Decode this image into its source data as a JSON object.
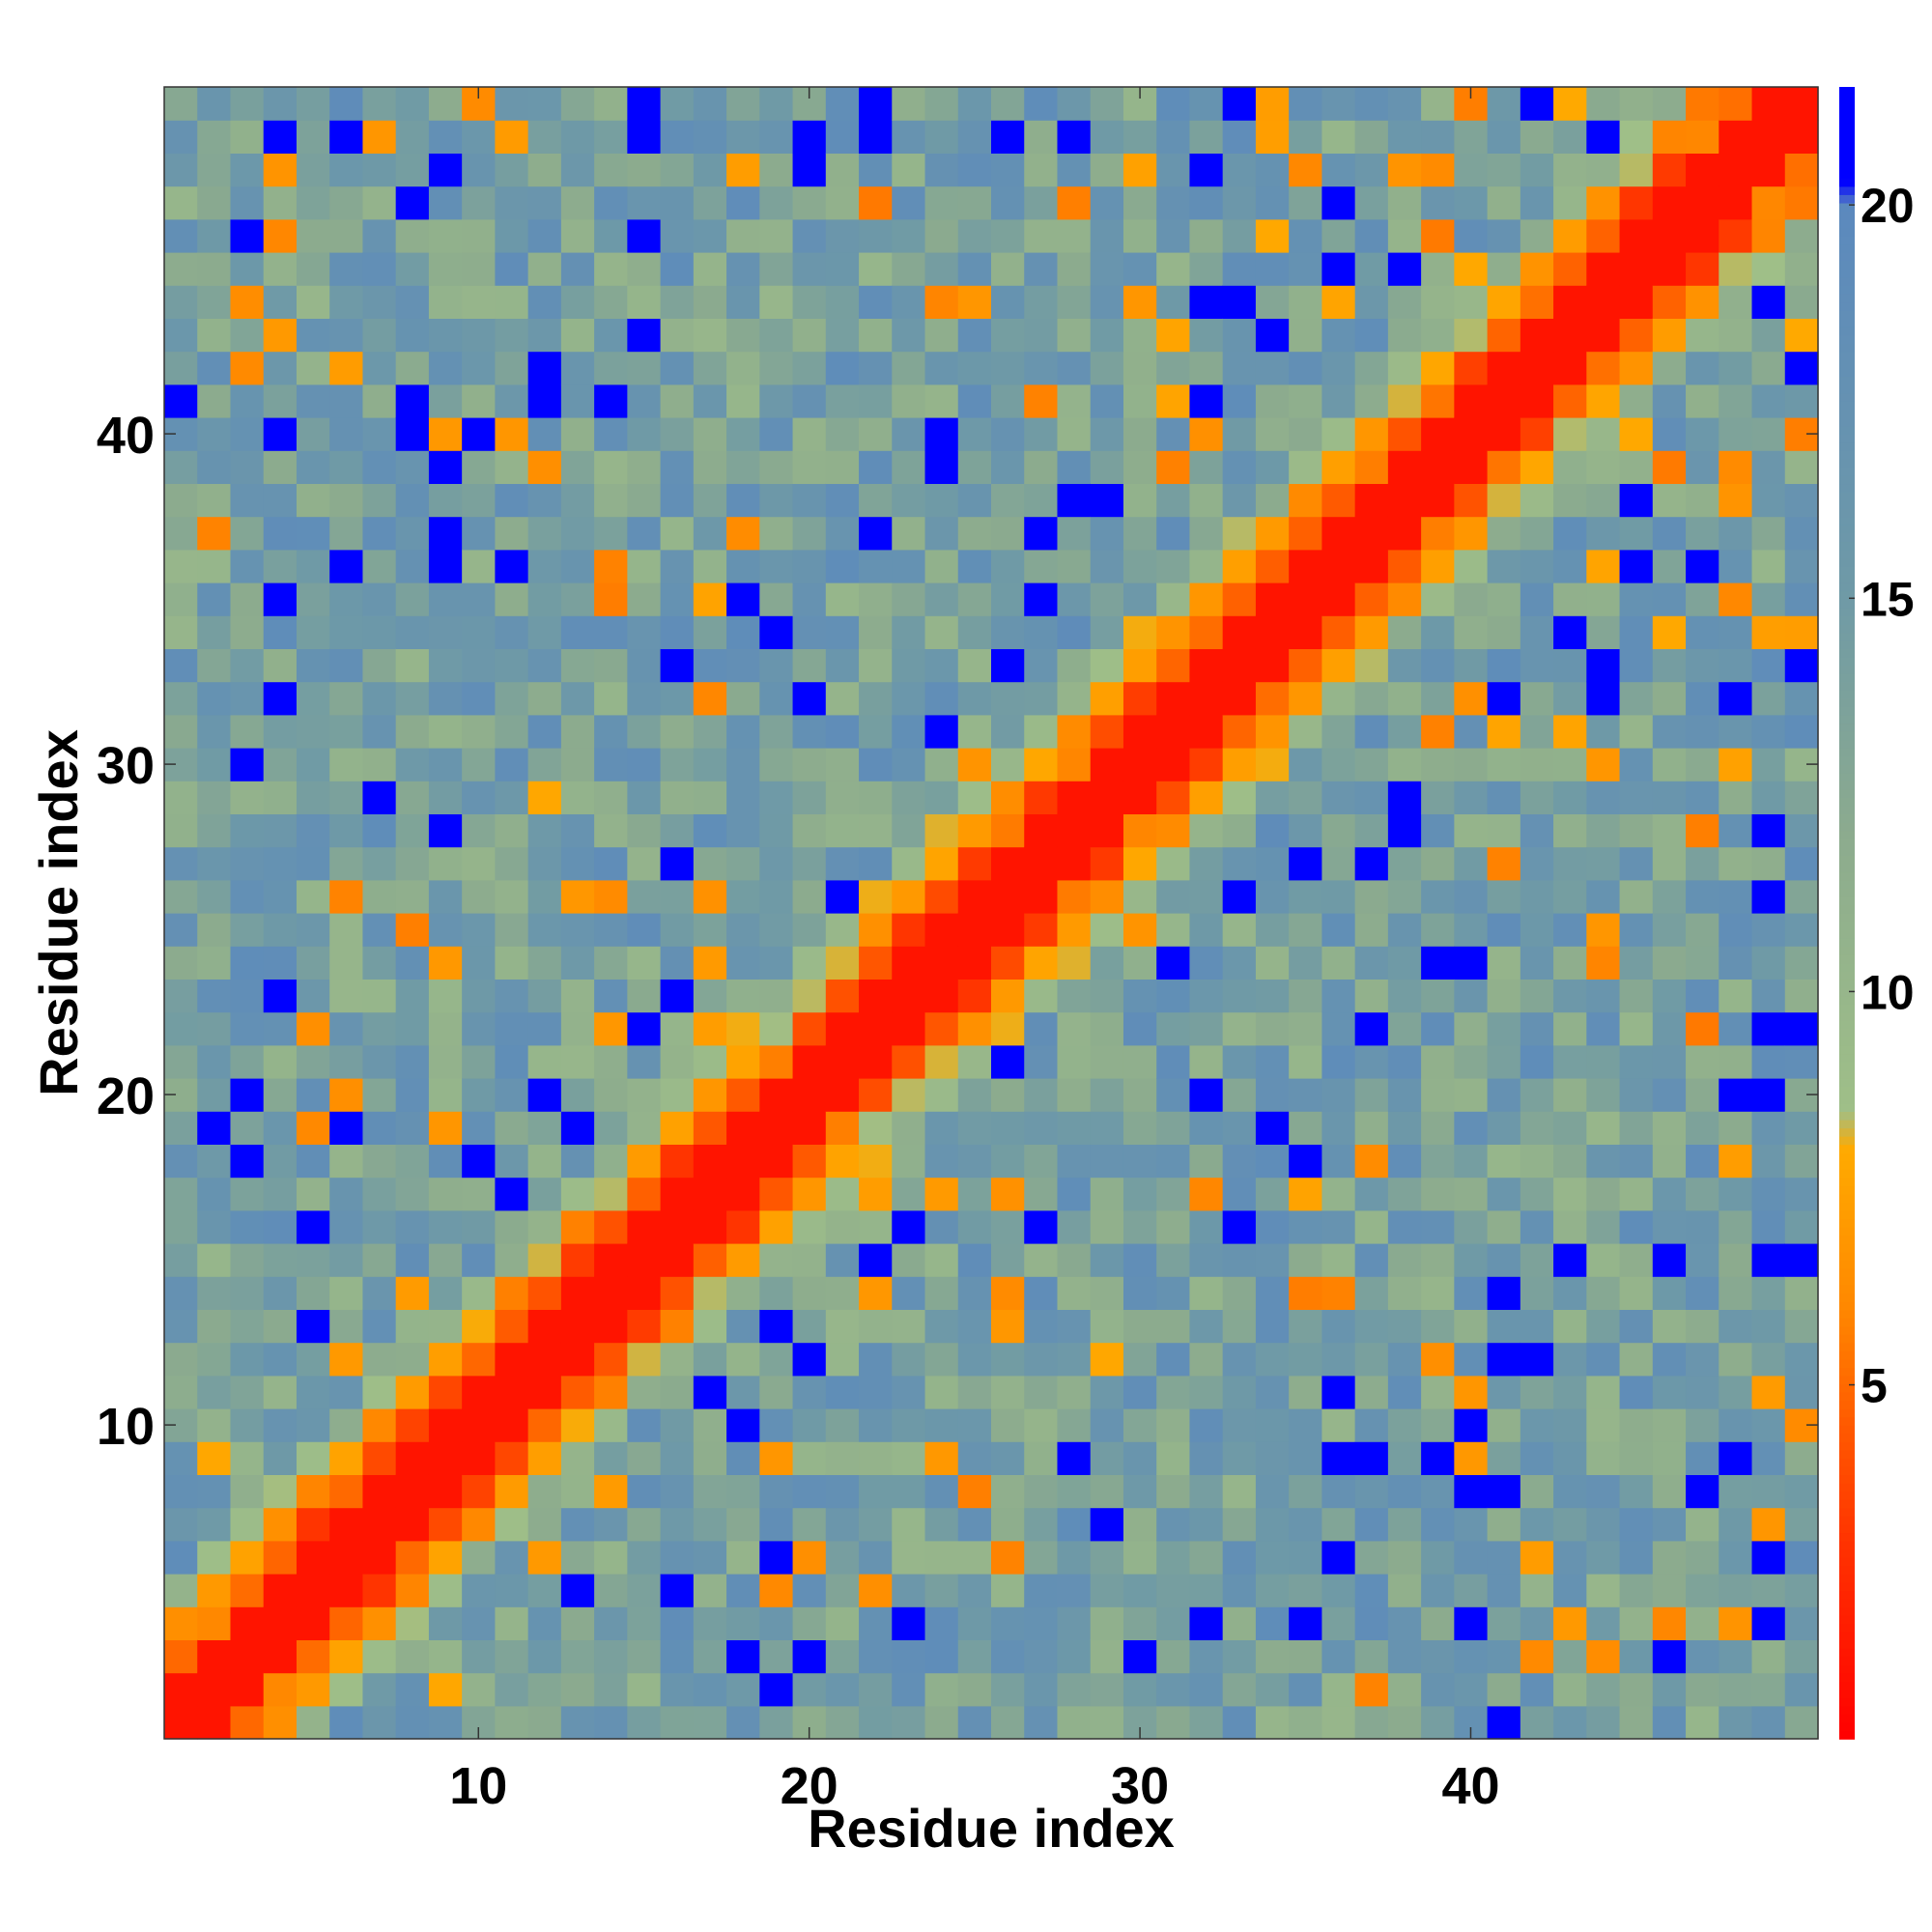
{
  "chart_data": {
    "type": "heatmap",
    "title": "",
    "xlabel": "Residue index",
    "ylabel": "Residue index",
    "n_residues": 50,
    "xlim": [
      0.5,
      50.5
    ],
    "ylim": [
      0.5,
      50.5
    ],
    "x_ticks": [
      10,
      20,
      30,
      40
    ],
    "y_ticks": [
      10,
      20,
      30,
      40
    ],
    "colorbar": {
      "ticks": [
        5,
        10,
        15,
        20
      ],
      "range": [
        0.5,
        21.5
      ],
      "stops": [
        {
          "value": 0.5,
          "color": "#ff0000"
        },
        {
          "value": 3.0,
          "color": "#ff3300"
        },
        {
          "value": 4.5,
          "color": "#ff5a00"
        },
        {
          "value": 6.0,
          "color": "#ff8800"
        },
        {
          "value": 8.0,
          "color": "#ffaa00"
        },
        {
          "value": 8.5,
          "color": "#9fbf88"
        },
        {
          "value": 12.0,
          "color": "#8cab8e"
        },
        {
          "value": 15.0,
          "color": "#6f9aa6"
        },
        {
          "value": 20.0,
          "color": "#5b89be"
        },
        {
          "value": 20.3,
          "color": "#0000ff"
        },
        {
          "value": 21.5,
          "color": "#0000ff"
        }
      ]
    },
    "grid": false,
    "legend": "colorbar-right"
  }
}
